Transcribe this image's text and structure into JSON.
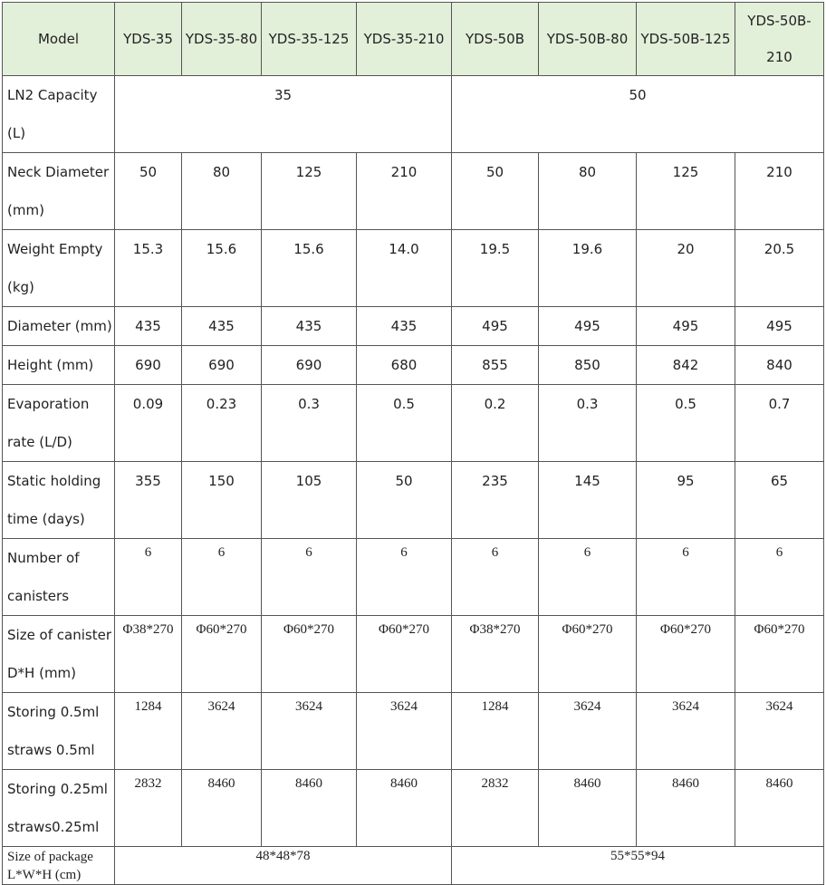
{
  "table": {
    "header": [
      "Model",
      "YDS-35",
      "YDS-35-80",
      "YDS-35-125",
      "YDS-35-210",
      "YDS-50B",
      "YDS-50B-80",
      "YDS-50B-125",
      "YDS-50B-210"
    ],
    "rows": [
      [
        "LN2 Capacity (L)",
        "35",
        "50"
      ],
      [
        "Neck Diameter\n(mm)",
        "50",
        "80",
        "125",
        "210",
        "50",
        "80",
        "125",
        "210"
      ],
      [
        "Weight Empty\n(kg)",
        "15.3",
        "15.6",
        "15.6",
        "14.0",
        "19.5",
        "19.6",
        "20",
        "20.5"
      ],
      [
        "Diameter (mm)",
        "435",
        "435",
        "435",
        "435",
        "495",
        "495",
        "495",
        "495"
      ],
      [
        "Height (mm)",
        "690",
        "690",
        "690",
        "680",
        "855",
        "850",
        "842",
        "840"
      ],
      [
        "Evaporation\nrate (L/D)",
        "0.09",
        "0.23",
        "0.3",
        "0.5",
        "0.2",
        "0.3",
        "0.5",
        "0.7"
      ],
      [
        "Static holding\ntime (days)",
        "355",
        "150",
        "105",
        "50",
        "235",
        "145",
        "95",
        "65"
      ],
      [
        "Number of\ncanisters",
        "6",
        "6",
        "6",
        "6",
        "6",
        "6",
        "6",
        "6"
      ],
      [
        "Size of canister\nD*H (mm)",
        "Φ38*270",
        "Φ60*270",
        "Φ60*270",
        "Φ60*270",
        "Φ38*270",
        "Φ60*270",
        "Φ60*270",
        "Φ60*270"
      ],
      [
        "Storing 0.5ml\nstraws 0.5ml",
        "1284",
        "3624",
        "3624",
        "3624",
        "1284",
        "3624",
        "3624",
        "3624"
      ],
      [
        "Storing 0.25ml\nstraws0.25ml",
        "2832",
        "8460",
        "8460",
        "8460",
        "2832",
        "8460",
        "8460",
        "8460"
      ],
      [
        "Size of package\nL*W*H (cm)",
        "48*48*78",
        "55*55*94"
      ]
    ]
  }
}
